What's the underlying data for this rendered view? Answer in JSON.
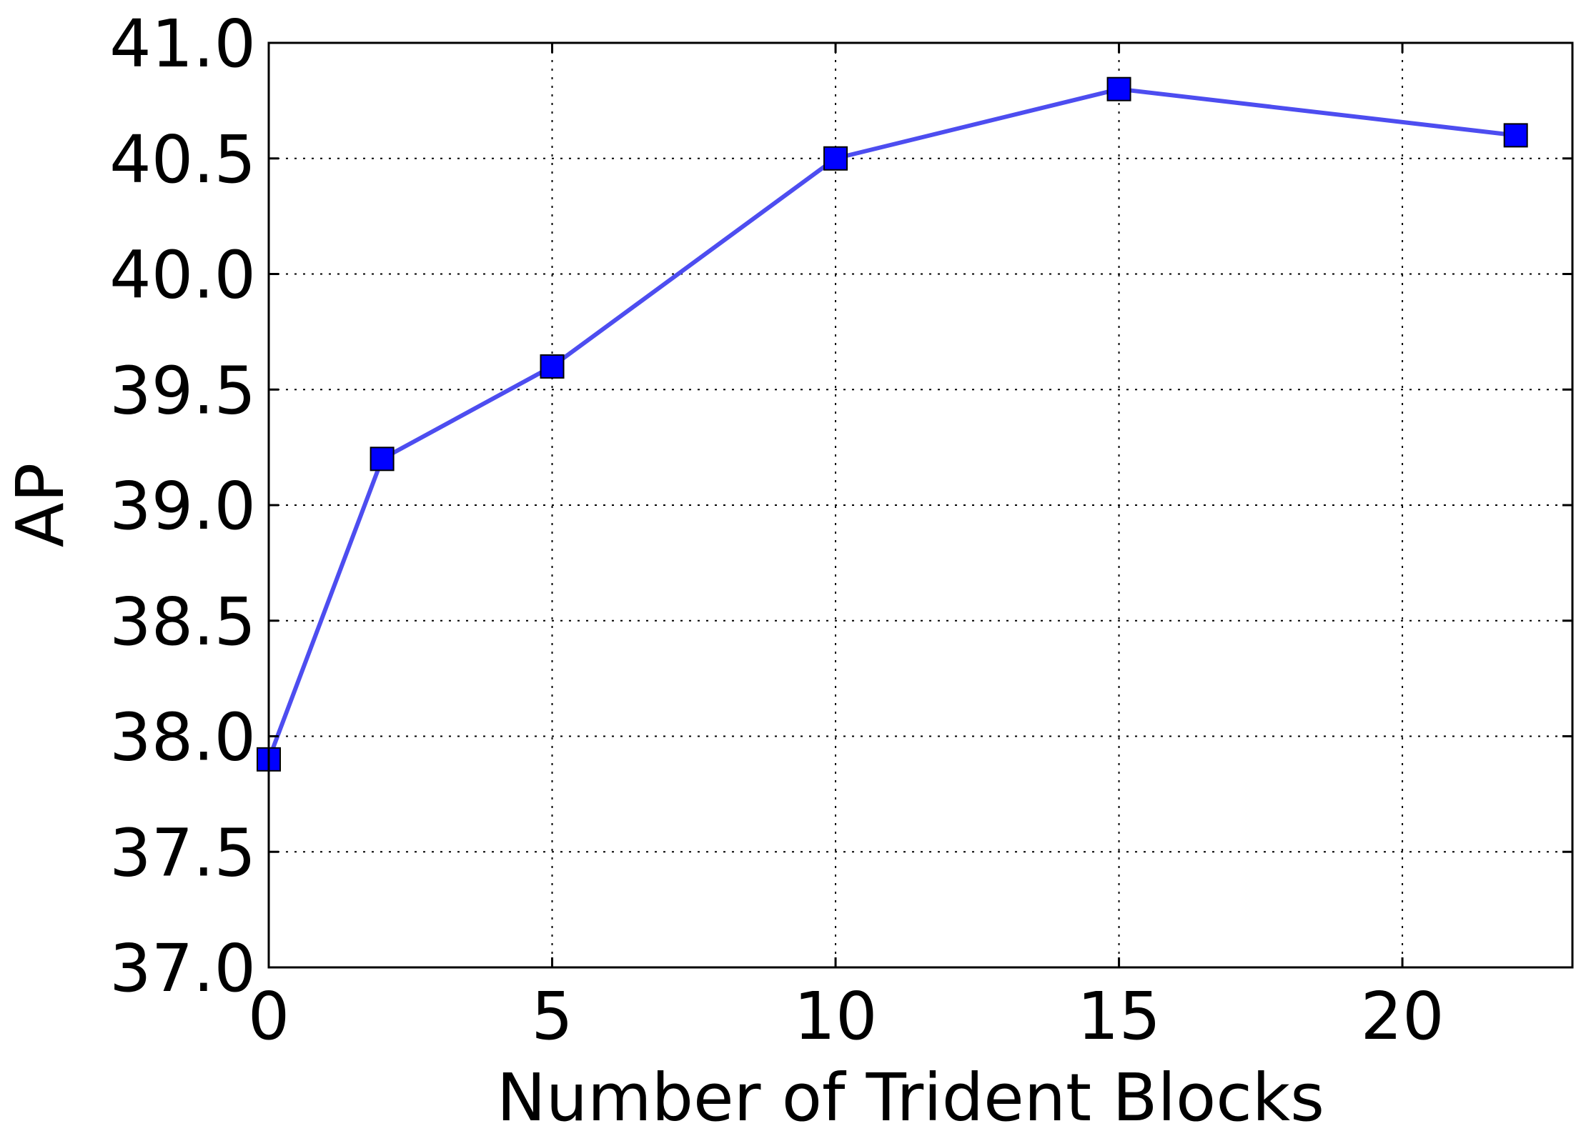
{
  "chart_data": {
    "type": "line",
    "title": "",
    "xlabel": "Number of Trident Blocks",
    "ylabel": "AP",
    "xlim": [
      0,
      23
    ],
    "ylim": [
      37.0,
      41.0
    ],
    "x_ticks": [
      0,
      5,
      10,
      15,
      20
    ],
    "y_ticks": [
      37.0,
      37.5,
      38.0,
      38.5,
      39.0,
      39.5,
      40.0,
      40.5,
      41.0
    ],
    "x_tick_labels": [
      "0",
      "5",
      "10",
      "15",
      "20"
    ],
    "y_tick_labels": [
      "37.0",
      "37.5",
      "38.0",
      "38.5",
      "39.0",
      "39.5",
      "40.0",
      "40.5",
      "41.0"
    ],
    "grid": true,
    "legend": "none",
    "series": [
      {
        "x": [
          0,
          2,
          5,
          10,
          15,
          22
        ],
        "y": [
          37.9,
          39.2,
          39.6,
          40.5,
          40.8,
          40.6
        ],
        "line_color": "#4d4df0",
        "marker": "square",
        "marker_color": "#0000ff"
      }
    ]
  }
}
